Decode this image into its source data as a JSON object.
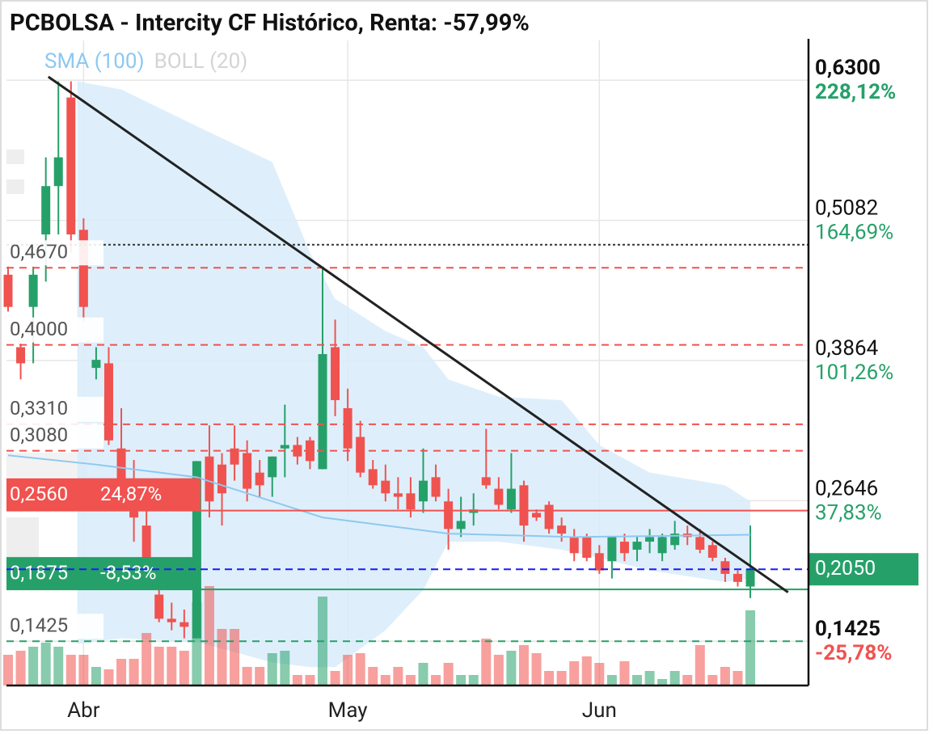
{
  "chart_data": {
    "type": "candlestick",
    "title": "PCBOLSA - Intercity CF Histórico, Renta: -57,99%",
    "indicators": [
      {
        "name": "SMA (100)",
        "color": "#8ec8f0"
      },
      {
        "name": "BOLL (20)",
        "color": "#d4d4d4"
      }
    ],
    "categories": [
      null,
      null,
      null,
      null,
      null,
      null,
      "Abr",
      null,
      null,
      null,
      null,
      null,
      null,
      null,
      null,
      null,
      null,
      null,
      null,
      null,
      null,
      null,
      null,
      null,
      null,
      null,
      null,
      "May",
      null,
      null,
      null,
      null,
      null,
      null,
      null,
      null,
      null,
      null,
      null,
      null,
      null,
      null,
      null,
      null,
      null,
      null,
      null,
      "Jun",
      null,
      null,
      null,
      null,
      null,
      null,
      null,
      null,
      null,
      null,
      null,
      null
    ],
    "open": [
      0.461,
      0.398,
      0.433,
      0.496,
      0.538,
      0.615,
      0.5,
      0.38,
      0.384,
      0.31,
      0.278,
      0.243,
      0.183,
      0.162,
      0.159,
      0.145,
      0.303,
      0.296,
      0.31,
      0.306,
      0.289,
      0.285,
      0.31,
      0.313,
      0.317,
      0.292,
      0.398,
      0.345,
      0.32,
      0.292,
      0.282,
      0.271,
      0.271,
      0.264,
      0.285,
      0.264,
      0.24,
      0.254,
      0.285,
      0.275,
      0.257,
      0.278,
      0.254,
      0.261,
      0.243,
      0.233,
      0.233,
      0.219,
      0.212,
      0.229,
      0.222,
      0.229,
      0.219,
      0.226,
      0.236,
      0.233,
      0.226,
      0.212,
      0.201,
      0.19
    ],
    "high": [
      0.468,
      0.401,
      0.468,
      0.563,
      0.629,
      0.629,
      0.51,
      0.398,
      0.398,
      0.345,
      0.3,
      0.264,
      0.2,
      0.176,
      0.17,
      0.299,
      0.33,
      0.306,
      0.33,
      0.317,
      0.3,
      0.303,
      0.348,
      0.32,
      0.32,
      0.468,
      0.422,
      0.362,
      0.334,
      0.3,
      0.296,
      0.285,
      0.285,
      0.31,
      0.296,
      0.275,
      0.268,
      0.271,
      0.327,
      0.285,
      0.306,
      0.282,
      0.257,
      0.264,
      0.25,
      0.24,
      0.236,
      0.226,
      0.233,
      0.236,
      0.233,
      0.24,
      0.236,
      0.247,
      0.243,
      0.24,
      0.229,
      0.215,
      0.204,
      0.243
    ],
    "low": [
      0.429,
      0.37,
      0.384,
      0.455,
      0.496,
      0.48,
      0.42,
      0.37,
      0.313,
      0.275,
      0.229,
      0.194,
      0.159,
      0.152,
      0.145,
      0.145,
      0.25,
      0.243,
      0.282,
      0.264,
      0.268,
      0.268,
      0.285,
      0.296,
      0.292,
      0.292,
      0.338,
      0.299,
      0.285,
      0.275,
      0.264,
      0.257,
      0.25,
      0.254,
      0.264,
      0.222,
      0.233,
      0.243,
      0.275,
      0.257,
      0.254,
      0.229,
      0.247,
      0.236,
      0.229,
      0.212,
      0.212,
      0.201,
      0.197,
      0.212,
      0.212,
      0.219,
      0.212,
      0.222,
      0.226,
      0.219,
      0.212,
      0.194,
      0.19,
      0.18
    ],
    "close": [
      0.433,
      0.384,
      0.461,
      0.538,
      0.563,
      0.496,
      0.433,
      0.387,
      0.317,
      0.278,
      0.25,
      0.208,
      0.162,
      0.159,
      0.155,
      0.299,
      0.264,
      0.271,
      0.296,
      0.275,
      0.278,
      0.303,
      0.313,
      0.303,
      0.299,
      0.392,
      0.352,
      0.31,
      0.289,
      0.278,
      0.271,
      0.268,
      0.257,
      0.282,
      0.268,
      0.24,
      0.247,
      0.257,
      0.278,
      0.261,
      0.275,
      0.243,
      0.25,
      0.24,
      0.236,
      0.219,
      0.215,
      0.204,
      0.233,
      0.219,
      0.229,
      0.233,
      0.233,
      0.236,
      0.233,
      0.222,
      0.215,
      0.201,
      0.194,
      0.205
    ],
    "volume": [
      38,
      43,
      48,
      53,
      48,
      38,
      38,
      23,
      20,
      33,
      33,
      65,
      48,
      48,
      43,
      103,
      123,
      70,
      70,
      23,
      23,
      40,
      43,
      13,
      13,
      110,
      18,
      38,
      40,
      23,
      13,
      23,
      13,
      28,
      13,
      28,
      13,
      13,
      58,
      38,
      43,
      50,
      40,
      18,
      18,
      30,
      36,
      28,
      13,
      30,
      13,
      18,
      8,
      18,
      13,
      50,
      13,
      23,
      18,
      93
    ],
    "vlim": [
      0,
      130
    ],
    "ylim": [
      0.104,
      0.666
    ],
    "yticks": [
      {
        "value": 0.63,
        "label": "0,6300",
        "change": "228,12%",
        "bold": true,
        "change_color": "#26a069"
      },
      {
        "value": 0.5082,
        "label": "0,5082",
        "change": "164,69%",
        "change_color": "#26a069"
      },
      {
        "value": 0.3864,
        "label": "0,3864",
        "change": "101,26%",
        "change_color": "#26a069"
      },
      {
        "value": 0.2646,
        "label": "0,2646",
        "change": "37,83%",
        "change_color": "#26a069"
      },
      {
        "value": 0.1425,
        "label": "0,1425",
        "change": "-25,78%",
        "bold": true,
        "change_color": "#f0524f"
      }
    ],
    "grid": true,
    "up_color": "#26a069",
    "down_color": "#f0524f",
    "sma": {
      "color": "#8ec8f0",
      "x": [
        0,
        7,
        15,
        25,
        35,
        45,
        59
      ],
      "values": [
        0.304,
        0.296,
        0.285,
        0.25,
        0.236,
        0.233,
        0.235
      ]
    },
    "bollinger": {
      "color": "#d8ecfa",
      "x": [
        5.5,
        9,
        15,
        21,
        24,
        26,
        30,
        33,
        35,
        39,
        44,
        47,
        51,
        57,
        59
      ],
      "upper": [
        0.629,
        0.622,
        0.59,
        0.559,
        0.48,
        0.44,
        0.412,
        0.398,
        0.37,
        0.355,
        0.352,
        0.313,
        0.289,
        0.278,
        0.264
      ],
      "lower": [
        0.14,
        0.145,
        0.142,
        0.124,
        0.12,
        0.12,
        0.152,
        0.187,
        0.229,
        0.229,
        0.222,
        0.215,
        0.204,
        0.194,
        0.197
      ]
    },
    "trendline": {
      "color": "#222222",
      "x": [
        3.2,
        62
      ],
      "values": [
        0.633,
        0.185
      ]
    },
    "levels": [
      {
        "value": 0.487,
        "color": "#333333",
        "dash": "dotted"
      },
      {
        "value": 0.467,
        "label": "0,4670",
        "color": "#f0524f",
        "dash": "dashed"
      },
      {
        "value": 0.4,
        "label": "0,4000",
        "color": "#f0524f",
        "dash": "dashed"
      },
      {
        "value": 0.331,
        "label": "0,3310",
        "color": "#f0524f",
        "dash": "dashed"
      },
      {
        "value": 0.308,
        "label": "0,3080",
        "color": "#f0524f",
        "dash": "dashed"
      },
      {
        "value": 0.256,
        "label": "0,2560",
        "change": "24,87%",
        "color": "#f0524f",
        "dash": "solid"
      },
      {
        "value": 0.1875,
        "label": "0,1875",
        "change": "-8,53%",
        "color": "#26a069",
        "dash": "solid"
      },
      {
        "value": 0.1425,
        "label": "0,1425",
        "color": "#26a069",
        "dash": "dashed"
      }
    ],
    "last": {
      "value": 0.205,
      "label": "0,2050",
      "color": "#26a069",
      "line_color": "#1a1aff"
    }
  }
}
